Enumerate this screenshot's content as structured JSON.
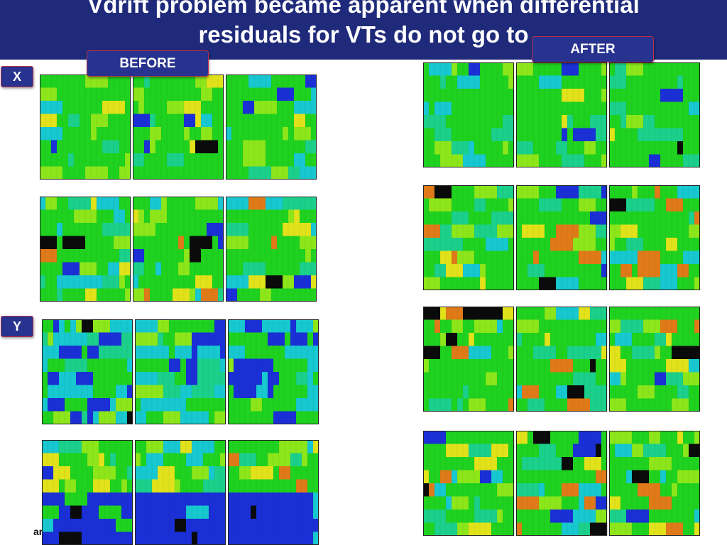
{
  "slide": {
    "title": "Vdrift problem became apparent when differential\nresiduals for VTs do not go to",
    "before_label": "BEFORE",
    "after_label": "AFTER",
    "x_label": "X",
    "y_label": "Y",
    "footer_fragment": "ar"
  },
  "palette": {
    "cold": "#1a2fd6",
    "cyan": "#17c8d0",
    "teal": "#1ad08a",
    "green": "#1fd21f",
    "lime": "#8ce61a",
    "yellow": "#e2e21a",
    "orange": "#e07a18",
    "black": "#0a0a0a",
    "grid": "#0f3d0f"
  },
  "panels": [
    {
      "id": "before-x-1",
      "group": "before",
      "axis": "x",
      "row": 1,
      "profile": "mild"
    },
    {
      "id": "before-x-2",
      "group": "before",
      "axis": "x",
      "row": 2,
      "profile": "mixed"
    },
    {
      "id": "before-y-1",
      "group": "before",
      "axis": "y",
      "row": 1,
      "profile": "cold"
    },
    {
      "id": "before-y-2",
      "group": "before",
      "axis": "y",
      "row": 2,
      "profile": "coldbottom"
    },
    {
      "id": "after-1",
      "group": "after",
      "axis": "",
      "row": 1,
      "profile": "mild"
    },
    {
      "id": "after-2",
      "group": "after",
      "axis": "",
      "row": 2,
      "profile": "mixed"
    },
    {
      "id": "after-3",
      "group": "after",
      "axis": "",
      "row": 3,
      "profile": "hot"
    },
    {
      "id": "after-4",
      "group": "after",
      "axis": "",
      "row": 4,
      "profile": "mixed"
    }
  ]
}
